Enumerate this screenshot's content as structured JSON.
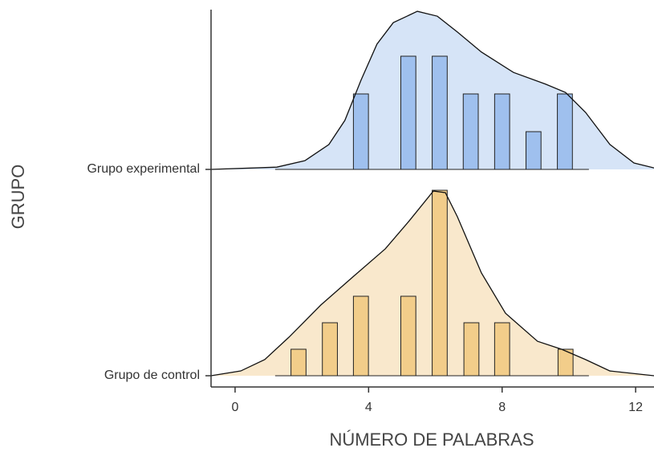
{
  "chart_data": {
    "type": "ridgeline",
    "xlabel": "NÚMERO DE PALABRAS",
    "ylabel": "GRUPO",
    "xlim": [
      -0.72,
      12.55
    ],
    "xticks": [
      0,
      4,
      8,
      12
    ],
    "series": [
      {
        "name": "Grupo de control",
        "color": "#f9e8cc",
        "bar_color": "#f2cd8a",
        "hist_range": [
          1.2,
          10.6
        ],
        "hist_x": [
          1.9,
          2.84,
          3.77,
          5.19,
          6.13,
          7.08,
          8.0,
          9.9
        ],
        "counts": [
          1,
          2,
          3,
          3,
          7,
          2,
          2,
          1
        ],
        "density_x": [
          -0.72,
          0.17,
          0.89,
          1.61,
          2.57,
          3.53,
          4.5,
          5.22,
          5.94,
          6.3,
          6.66,
          7.38,
          8.1,
          9.06,
          9.78,
          10.5,
          11.23,
          12.55
        ],
        "density": [
          0,
          0.18,
          0.61,
          1.45,
          2.67,
          3.73,
          4.79,
          5.85,
          6.97,
          6.91,
          6.0,
          3.88,
          2.36,
          1.3,
          1.0,
          0.61,
          0.18,
          0
        ]
      },
      {
        "name": "Grupo experimental",
        "color": "#d6e4f7",
        "bar_color": "#9fc0ee",
        "hist_range": [
          1.2,
          10.6
        ],
        "hist_x": [
          3.77,
          5.19,
          6.13,
          7.06,
          8.0,
          8.94,
          9.88
        ],
        "counts": [
          2,
          3,
          3,
          2,
          2,
          1,
          2
        ],
        "density_x": [
          -0.72,
          1.25,
          2.09,
          2.81,
          3.29,
          3.77,
          4.25,
          4.74,
          5.46,
          6.06,
          6.66,
          7.38,
          8.34,
          9.3,
          9.9,
          10.5,
          11.23,
          11.95,
          12.55
        ],
        "density": [
          0,
          0.06,
          0.23,
          0.66,
          1.3,
          2.36,
          3.32,
          3.89,
          4.19,
          4.06,
          3.64,
          3.11,
          2.57,
          2.26,
          2.04,
          1.51,
          0.66,
          0.17,
          0.04
        ]
      }
    ]
  }
}
